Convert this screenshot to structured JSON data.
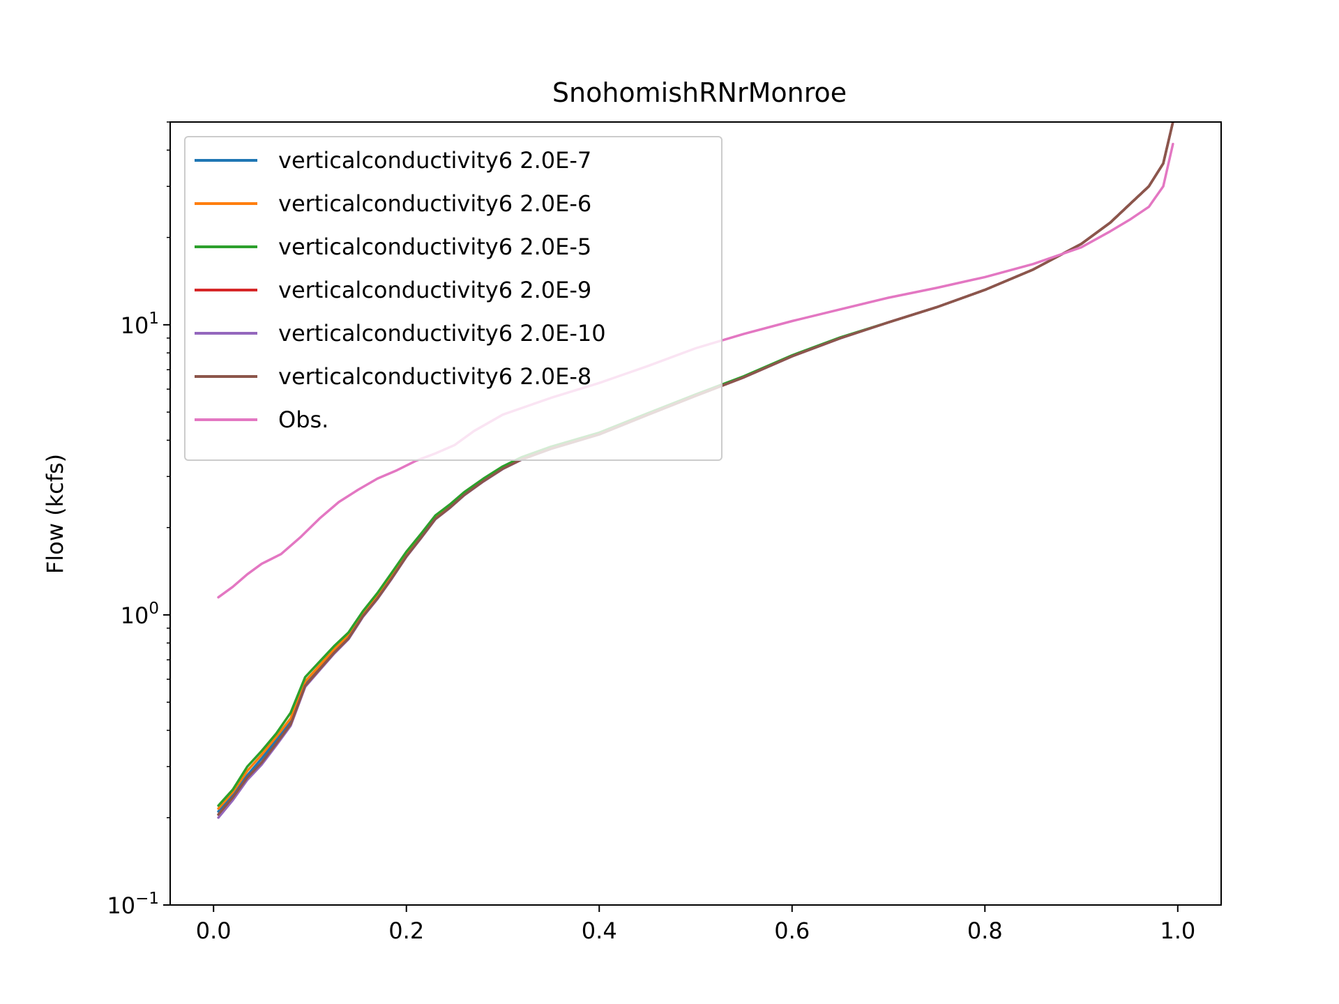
{
  "chart_data": {
    "type": "line",
    "title": "SnohomishRNrMonroe",
    "xlabel": "",
    "ylabel": "Flow (kcfs)",
    "xlim": [
      -0.045,
      1.045
    ],
    "ylim": [
      0.1,
      50
    ],
    "yscale": "log",
    "grid": false,
    "legend_position": "upper-left",
    "xticks": [
      {
        "value": 0.0,
        "label": "0.0"
      },
      {
        "value": 0.2,
        "label": "0.2"
      },
      {
        "value": 0.4,
        "label": "0.4"
      },
      {
        "value": 0.6,
        "label": "0.6"
      },
      {
        "value": 0.8,
        "label": "0.8"
      },
      {
        "value": 1.0,
        "label": "1.0"
      }
    ],
    "yticks": [
      {
        "value": 0.1,
        "base": "10",
        "exp": "−1"
      },
      {
        "value": 1,
        "base": "10",
        "exp": "0"
      },
      {
        "value": 10,
        "base": "10",
        "exp": "1"
      }
    ],
    "series": [
      {
        "name": "verticalconductivity6 2.0E-7",
        "color": "#1f77b4",
        "x": [
          0.005,
          0.02,
          0.035,
          0.05,
          0.065,
          0.08,
          0.095,
          0.11,
          0.125,
          0.14,
          0.155,
          0.17,
          0.185,
          0.2,
          0.215,
          0.23,
          0.245,
          0.26,
          0.28,
          0.3,
          0.32,
          0.35,
          0.4,
          0.45,
          0.5,
          0.55,
          0.6,
          0.65,
          0.7,
          0.75,
          0.8,
          0.85,
          0.9,
          0.93,
          0.95,
          0.97,
          0.985,
          0.995
        ],
        "y": [
          0.21,
          0.24,
          0.28,
          0.32,
          0.37,
          0.43,
          0.58,
          0.66,
          0.75,
          0.84,
          1.0,
          1.15,
          1.35,
          1.6,
          1.85,
          2.15,
          2.35,
          2.6,
          2.9,
          3.2,
          3.45,
          3.75,
          4.2,
          4.9,
          5.7,
          6.6,
          7.8,
          9.0,
          10.2,
          11.5,
          13.2,
          15.5,
          19.0,
          22.5,
          26.0,
          30.0,
          36.0,
          50.0
        ]
      },
      {
        "name": "verticalconductivity6 2.0E-6",
        "color": "#ff7f0e",
        "x": [
          0.005,
          0.02,
          0.035,
          0.05,
          0.065,
          0.08,
          0.095,
          0.11,
          0.125,
          0.14,
          0.155,
          0.17,
          0.185,
          0.2,
          0.215,
          0.23,
          0.245,
          0.26,
          0.28,
          0.3,
          0.32,
          0.35,
          0.4,
          0.45,
          0.5,
          0.55,
          0.6,
          0.65,
          0.7,
          0.75,
          0.8,
          0.85,
          0.9,
          0.93,
          0.95,
          0.97,
          0.985,
          0.995
        ],
        "y": [
          0.215,
          0.245,
          0.29,
          0.33,
          0.38,
          0.44,
          0.59,
          0.67,
          0.76,
          0.85,
          1.01,
          1.16,
          1.36,
          1.61,
          1.86,
          2.16,
          2.36,
          2.61,
          2.91,
          3.21,
          3.46,
          3.76,
          4.22,
          4.92,
          5.72,
          6.62,
          7.82,
          9.0,
          10.2,
          11.5,
          13.2,
          15.5,
          19.0,
          22.5,
          26.0,
          30.0,
          36.0,
          50.0
        ]
      },
      {
        "name": "verticalconductivity6 2.0E-5",
        "color": "#2ca02c",
        "x": [
          0.005,
          0.02,
          0.035,
          0.05,
          0.065,
          0.08,
          0.095,
          0.11,
          0.125,
          0.14,
          0.155,
          0.17,
          0.185,
          0.2,
          0.215,
          0.23,
          0.245,
          0.26,
          0.28,
          0.3,
          0.32,
          0.35,
          0.4,
          0.45,
          0.5,
          0.55,
          0.6,
          0.65,
          0.7,
          0.75,
          0.8,
          0.85,
          0.9,
          0.93,
          0.95,
          0.97,
          0.985,
          0.995
        ],
        "y": [
          0.22,
          0.25,
          0.3,
          0.34,
          0.39,
          0.46,
          0.61,
          0.69,
          0.78,
          0.87,
          1.03,
          1.19,
          1.4,
          1.65,
          1.9,
          2.2,
          2.4,
          2.65,
          2.95,
          3.25,
          3.5,
          3.8,
          4.25,
          4.95,
          5.75,
          6.65,
          7.85,
          9.05,
          10.2,
          11.5,
          13.2,
          15.5,
          19.0,
          22.5,
          26.0,
          30.0,
          36.0,
          50.0
        ]
      },
      {
        "name": "verticalconductivity6 2.0E-9",
        "color": "#d62728",
        "x": [
          0.005,
          0.02,
          0.035,
          0.05,
          0.065,
          0.08,
          0.095,
          0.11,
          0.125,
          0.14,
          0.155,
          0.17,
          0.185,
          0.2,
          0.215,
          0.23,
          0.245,
          0.26,
          0.28,
          0.3,
          0.32,
          0.35,
          0.4,
          0.45,
          0.5,
          0.55,
          0.6,
          0.65,
          0.7,
          0.75,
          0.8,
          0.85,
          0.9,
          0.93,
          0.95,
          0.97,
          0.985,
          0.995
        ],
        "y": [
          0.205,
          0.235,
          0.275,
          0.31,
          0.36,
          0.42,
          0.57,
          0.65,
          0.74,
          0.83,
          0.99,
          1.14,
          1.34,
          1.59,
          1.84,
          2.14,
          2.34,
          2.59,
          2.89,
          3.19,
          3.44,
          3.74,
          4.19,
          4.89,
          5.69,
          6.59,
          7.79,
          8.99,
          10.2,
          11.5,
          13.2,
          15.5,
          19.0,
          22.5,
          26.0,
          30.0,
          36.0,
          50.0
        ]
      },
      {
        "name": "verticalconductivity6 2.0E-10",
        "color": "#9467bd",
        "x": [
          0.005,
          0.02,
          0.035,
          0.05,
          0.065,
          0.08,
          0.095,
          0.11,
          0.125,
          0.14,
          0.155,
          0.17,
          0.185,
          0.2,
          0.215,
          0.23,
          0.245,
          0.26,
          0.28,
          0.3,
          0.32,
          0.35,
          0.4,
          0.45,
          0.5,
          0.55,
          0.6,
          0.65,
          0.7,
          0.75,
          0.8,
          0.85,
          0.9,
          0.93,
          0.95,
          0.97,
          0.985,
          0.995
        ],
        "y": [
          0.2,
          0.23,
          0.27,
          0.305,
          0.355,
          0.415,
          0.565,
          0.645,
          0.735,
          0.825,
          0.985,
          1.135,
          1.335,
          1.585,
          1.835,
          2.135,
          2.335,
          2.585,
          2.885,
          3.185,
          3.435,
          3.735,
          4.185,
          4.885,
          5.685,
          6.585,
          7.785,
          8.985,
          10.2,
          11.5,
          13.2,
          15.5,
          19.0,
          22.5,
          26.0,
          30.0,
          36.0,
          50.0
        ]
      },
      {
        "name": "verticalconductivity6 2.0E-8",
        "color": "#8c564b",
        "x": [
          0.005,
          0.02,
          0.035,
          0.05,
          0.065,
          0.08,
          0.095,
          0.11,
          0.125,
          0.14,
          0.155,
          0.17,
          0.185,
          0.2,
          0.215,
          0.23,
          0.245,
          0.26,
          0.28,
          0.3,
          0.32,
          0.35,
          0.4,
          0.45,
          0.5,
          0.55,
          0.6,
          0.65,
          0.7,
          0.75,
          0.8,
          0.85,
          0.9,
          0.93,
          0.95,
          0.97,
          0.985,
          0.995
        ],
        "y": [
          0.205,
          0.235,
          0.275,
          0.31,
          0.36,
          0.42,
          0.57,
          0.65,
          0.74,
          0.83,
          0.99,
          1.14,
          1.34,
          1.59,
          1.84,
          2.14,
          2.34,
          2.59,
          2.89,
          3.19,
          3.44,
          3.74,
          4.19,
          4.89,
          5.69,
          6.59,
          7.79,
          8.99,
          10.2,
          11.5,
          13.2,
          15.5,
          19.0,
          22.5,
          26.0,
          30.0,
          36.0,
          50.0
        ]
      },
      {
        "name": "Obs.",
        "color": "#e377c2",
        "x": [
          0.005,
          0.02,
          0.035,
          0.05,
          0.07,
          0.09,
          0.11,
          0.13,
          0.15,
          0.17,
          0.19,
          0.21,
          0.23,
          0.25,
          0.27,
          0.3,
          0.35,
          0.4,
          0.45,
          0.5,
          0.55,
          0.6,
          0.65,
          0.7,
          0.75,
          0.8,
          0.85,
          0.9,
          0.93,
          0.95,
          0.97,
          0.985,
          0.995
        ],
        "y": [
          1.15,
          1.25,
          1.38,
          1.5,
          1.62,
          1.85,
          2.15,
          2.45,
          2.7,
          2.95,
          3.15,
          3.4,
          3.6,
          3.85,
          4.3,
          4.9,
          5.6,
          6.3,
          7.2,
          8.3,
          9.3,
          10.3,
          11.3,
          12.4,
          13.4,
          14.6,
          16.2,
          18.5,
          21.0,
          23.0,
          25.5,
          30.0,
          42.0
        ]
      }
    ]
  }
}
